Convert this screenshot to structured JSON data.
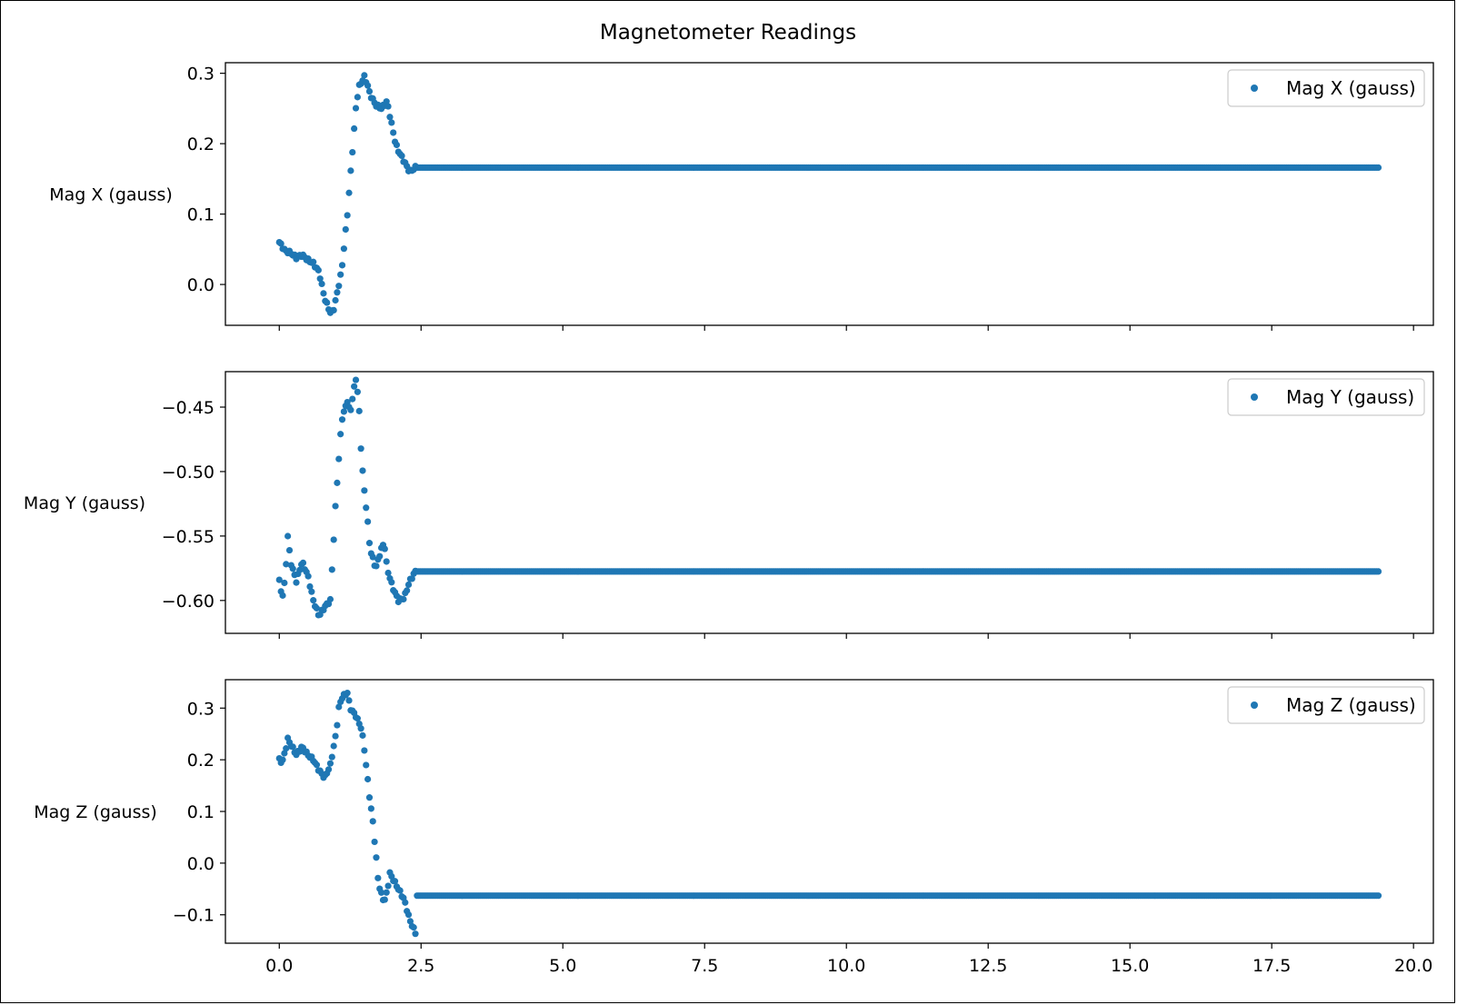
{
  "chart_data": {
    "type": "scatter",
    "title": "Magnetometer Readings",
    "color": "#1f77b4",
    "x_ticks": [
      0.0,
      2.5,
      5.0,
      7.5,
      10.0,
      12.5,
      15.0,
      17.5,
      20.0
    ],
    "x_tick_labels": [
      "0.0",
      "2.5",
      "5.0",
      "7.5",
      "10.0",
      "12.5",
      "15.0",
      "17.5",
      "20.0"
    ],
    "xlim": [
      -0.95,
      20.35
    ],
    "x_step": 0.03,
    "x_end": 19.4,
    "plateau_start": 2.42,
    "subplots": [
      {
        "ylabel": "Mag X (gauss)",
        "legend": "Mag X (gauss)",
        "legend_loc": "upper right",
        "ylim": [
          -0.058,
          0.315
        ],
        "yticks": [
          0.0,
          0.1,
          0.2,
          0.3
        ],
        "ytick_labels": [
          "0.0",
          "0.1",
          "0.2",
          "0.3"
        ],
        "plateau_value": 0.166,
        "key_points": [
          [
            0.0,
            0.06
          ],
          [
            0.1,
            0.048
          ],
          [
            0.2,
            0.045
          ],
          [
            0.3,
            0.038
          ],
          [
            0.4,
            0.042
          ],
          [
            0.5,
            0.035
          ],
          [
            0.6,
            0.03
          ],
          [
            0.7,
            0.018
          ],
          [
            0.8,
            -0.02
          ],
          [
            0.9,
            -0.04
          ],
          [
            0.95,
            -0.038
          ],
          [
            1.0,
            -0.02
          ],
          [
            1.05,
            0.0
          ],
          [
            1.1,
            0.02
          ],
          [
            1.15,
            0.06
          ],
          [
            1.2,
            0.1
          ],
          [
            1.25,
            0.15
          ],
          [
            1.3,
            0.2
          ],
          [
            1.35,
            0.25
          ],
          [
            1.4,
            0.28
          ],
          [
            1.5,
            0.295
          ],
          [
            1.55,
            0.285
          ],
          [
            1.6,
            0.27
          ],
          [
            1.7,
            0.255
          ],
          [
            1.8,
            0.25
          ],
          [
            1.9,
            0.26
          ],
          [
            1.95,
            0.24
          ],
          [
            2.0,
            0.22
          ],
          [
            2.05,
            0.2
          ],
          [
            2.1,
            0.19
          ],
          [
            2.2,
            0.175
          ],
          [
            2.3,
            0.16
          ],
          [
            2.35,
            0.163
          ],
          [
            2.4,
            0.166
          ]
        ]
      },
      {
        "ylabel": "Mag Y (gauss)",
        "legend": "Mag Y (gauss)",
        "legend_loc": "upper right",
        "ylim": [
          -0.6255,
          -0.4225
        ],
        "yticks": [
          -0.6,
          -0.55,
          -0.5,
          -0.45
        ],
        "ytick_labels": [
          "−0.60",
          "−0.55",
          "−0.50",
          "−0.45"
        ],
        "plateau_value": -0.5775,
        "key_points": [
          [
            0.0,
            -0.585
          ],
          [
            0.05,
            -0.598
          ],
          [
            0.1,
            -0.585
          ],
          [
            0.15,
            -0.55
          ],
          [
            0.2,
            -0.57
          ],
          [
            0.3,
            -0.585
          ],
          [
            0.4,
            -0.57
          ],
          [
            0.5,
            -0.58
          ],
          [
            0.6,
            -0.6
          ],
          [
            0.7,
            -0.612
          ],
          [
            0.8,
            -0.605
          ],
          [
            0.9,
            -0.6
          ],
          [
            0.95,
            -0.56
          ],
          [
            1.0,
            -0.52
          ],
          [
            1.05,
            -0.49
          ],
          [
            1.1,
            -0.46
          ],
          [
            1.2,
            -0.445
          ],
          [
            1.25,
            -0.455
          ],
          [
            1.3,
            -0.44
          ],
          [
            1.35,
            -0.428
          ],
          [
            1.4,
            -0.445
          ],
          [
            1.45,
            -0.49
          ],
          [
            1.5,
            -0.515
          ],
          [
            1.55,
            -0.535
          ],
          [
            1.6,
            -0.56
          ],
          [
            1.7,
            -0.575
          ],
          [
            1.8,
            -0.56
          ],
          [
            1.85,
            -0.555
          ],
          [
            1.9,
            -0.575
          ],
          [
            2.0,
            -0.59
          ],
          [
            2.1,
            -0.6
          ],
          [
            2.2,
            -0.598
          ],
          [
            2.3,
            -0.585
          ],
          [
            2.4,
            -0.5775
          ]
        ]
      },
      {
        "ylabel": "Mag Z (gauss)",
        "legend": "Mag Z (gauss)",
        "legend_loc": "upper right",
        "ylim": [
          -0.155,
          0.355
        ],
        "yticks": [
          -0.1,
          0.0,
          0.1,
          0.2,
          0.3
        ],
        "ytick_labels": [
          "−0.1",
          "0.0",
          "0.1",
          "0.2",
          "0.3"
        ],
        "plateau_value": -0.063,
        "key_points": [
          [
            0.0,
            0.2
          ],
          [
            0.05,
            0.195
          ],
          [
            0.1,
            0.215
          ],
          [
            0.15,
            0.24
          ],
          [
            0.2,
            0.23
          ],
          [
            0.3,
            0.21
          ],
          [
            0.4,
            0.225
          ],
          [
            0.5,
            0.21
          ],
          [
            0.6,
            0.2
          ],
          [
            0.7,
            0.18
          ],
          [
            0.8,
            0.165
          ],
          [
            0.9,
            0.19
          ],
          [
            1.0,
            0.25
          ],
          [
            1.05,
            0.3
          ],
          [
            1.1,
            0.32
          ],
          [
            1.2,
            0.33
          ],
          [
            1.25,
            0.3
          ],
          [
            1.35,
            0.285
          ],
          [
            1.45,
            0.26
          ],
          [
            1.5,
            0.22
          ],
          [
            1.55,
            0.17
          ],
          [
            1.6,
            0.12
          ],
          [
            1.65,
            0.08
          ],
          [
            1.7,
            0.02
          ],
          [
            1.75,
            -0.04
          ],
          [
            1.8,
            -0.06
          ],
          [
            1.85,
            -0.075
          ],
          [
            1.9,
            -0.055
          ],
          [
            1.95,
            -0.02
          ],
          [
            2.0,
            -0.03
          ],
          [
            2.1,
            -0.05
          ],
          [
            2.2,
            -0.07
          ],
          [
            2.3,
            -0.11
          ],
          [
            2.4,
            -0.135
          ],
          [
            2.42,
            -0.063
          ]
        ]
      }
    ]
  }
}
